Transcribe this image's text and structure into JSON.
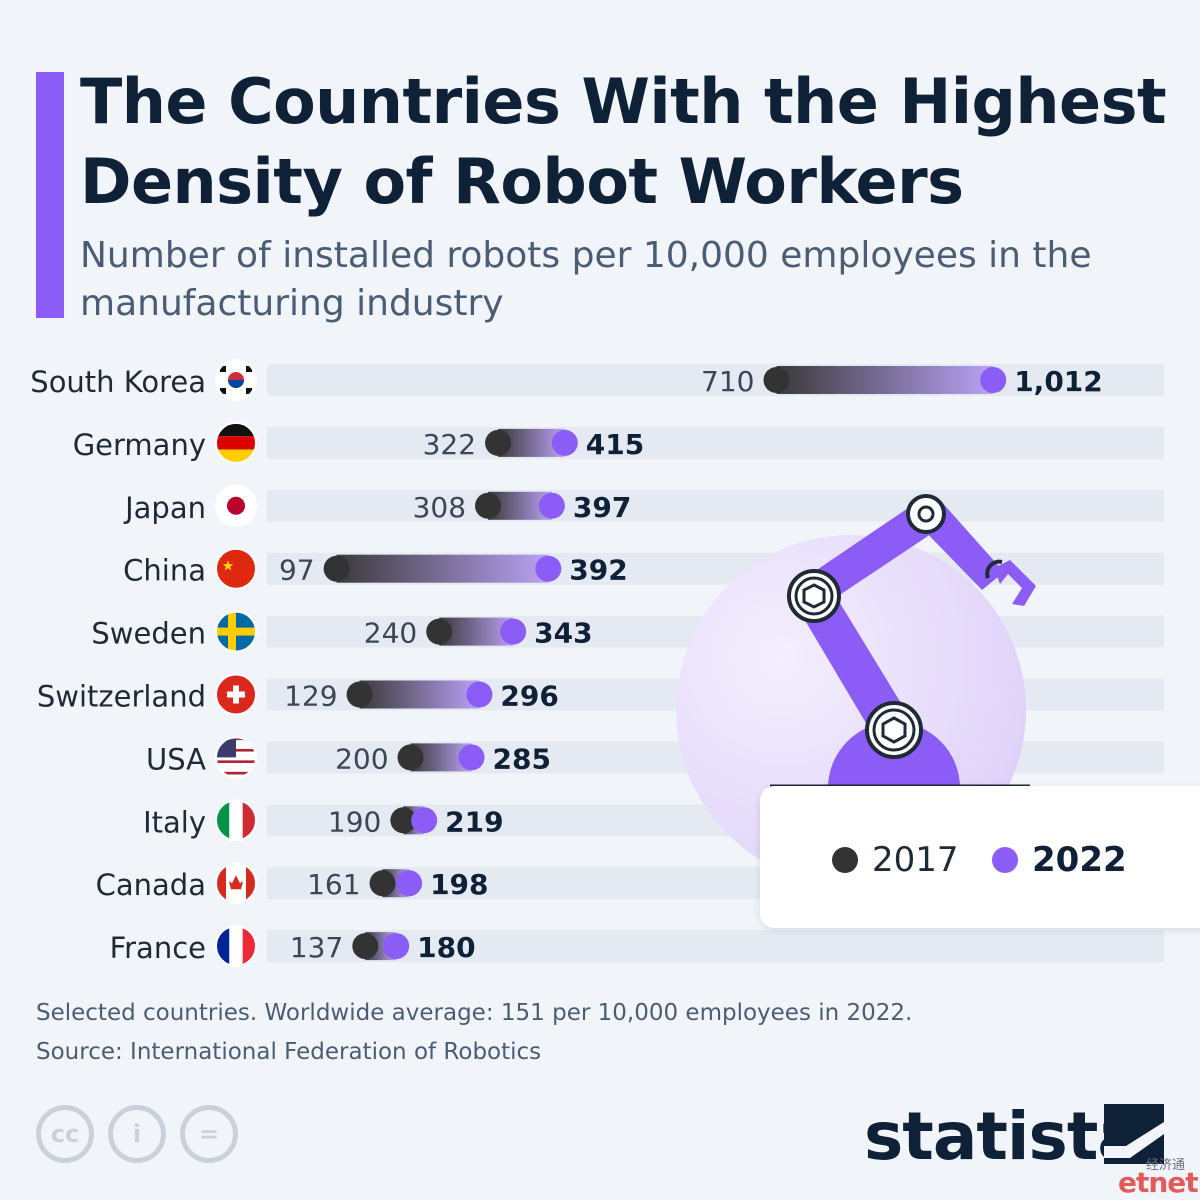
{
  "title": "The Countries With the Highest Density of Robot Workers",
  "subtitle": "Number of installed robots per 10,000 employees in the manufacturing industry",
  "colors": {
    "accent": "#8b5cf6",
    "year_2017": "#333333",
    "year_2022": "#8b5cf6",
    "track": "#e5eaf2",
    "title": "#0f2137"
  },
  "chart_data": {
    "type": "dumbbell",
    "categories": [
      "South Korea",
      "Germany",
      "Japan",
      "China",
      "Sweden",
      "Switzerland",
      "USA",
      "Italy",
      "Canada",
      "France"
    ],
    "flags": [
      "south-korea-flag-icon",
      "germany-flag-icon",
      "japan-flag-icon",
      "china-flag-icon",
      "sweden-flag-icon",
      "switzerland-flag-icon",
      "usa-flag-icon",
      "italy-flag-icon",
      "canada-flag-icon",
      "france-flag-icon"
    ],
    "series": [
      {
        "name": "2017",
        "values": [
          710,
          322,
          308,
          97,
          240,
          129,
          200,
          190,
          161,
          137
        ],
        "labels": [
          "710",
          "322",
          "308",
          "97",
          "240",
          "129",
          "200",
          "190",
          "161",
          "137"
        ]
      },
      {
        "name": "2022",
        "values": [
          1012,
          415,
          397,
          392,
          343,
          296,
          285,
          219,
          198,
          180
        ],
        "labels": [
          "1,012",
          "415",
          "397",
          "392",
          "343",
          "296",
          "285",
          "219",
          "198",
          "180"
        ]
      }
    ],
    "xlim": [
      0,
      1400
    ],
    "legend": {
      "position": "bottom-right",
      "items": [
        "2017",
        "2022"
      ]
    }
  },
  "notes": {
    "line1": "Selected countries. Worldwide average: 151 per 10,000 employees in 2022.",
    "line2": "Source: International Federation of Robotics"
  },
  "license_icons": [
    "cc-icon",
    "attribution-icon",
    "no-derivatives-icon"
  ],
  "license_glyphs": {
    "cc": "cc",
    "attribution": "i",
    "no_derivatives": "="
  },
  "brand": "statista",
  "watermark": {
    "cn": "经济通",
    "en": "etnet"
  }
}
